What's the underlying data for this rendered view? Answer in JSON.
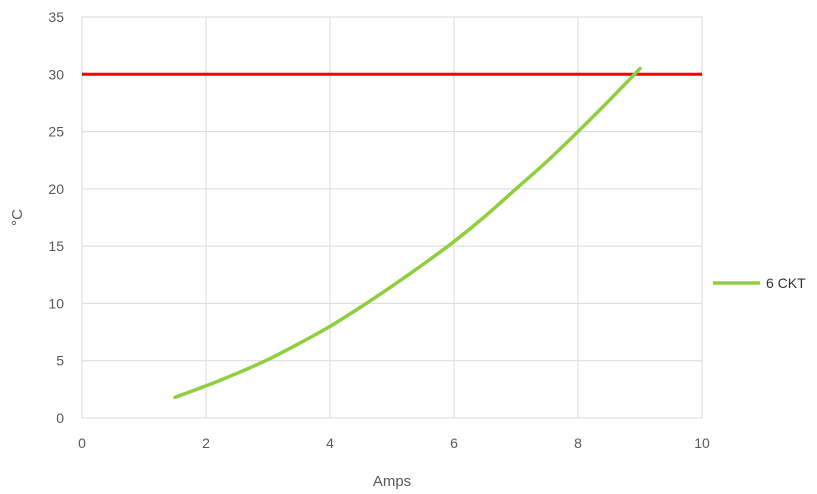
{
  "chart_data": {
    "type": "line",
    "title": "",
    "xlabel": "Amps",
    "ylabel": "°C",
    "xlim": [
      0,
      10
    ],
    "ylim": [
      0,
      35
    ],
    "x_ticks": [
      "0",
      "2",
      "4",
      "6",
      "8",
      "10"
    ],
    "y_ticks": [
      "0",
      "5",
      "10",
      "15",
      "20",
      "25",
      "30",
      "35"
    ],
    "grid": true,
    "legend_position": "right",
    "series": [
      {
        "name": "6 CKT",
        "color": "#8fce3f",
        "x": [
          1.5,
          2,
          2.5,
          3,
          3.5,
          4,
          4.5,
          5,
          5.5,
          6,
          6.5,
          7,
          7.5,
          8,
          8.5,
          9
        ],
        "y": [
          1.8,
          2.8,
          3.9,
          5.1,
          6.5,
          8.0,
          9.7,
          11.5,
          13.4,
          15.4,
          17.6,
          20.0,
          22.4,
          25.0,
          27.7,
          30.5
        ]
      }
    ],
    "reference_lines": [
      {
        "axis": "y",
        "value": 30,
        "color": "#ff0000"
      }
    ]
  }
}
